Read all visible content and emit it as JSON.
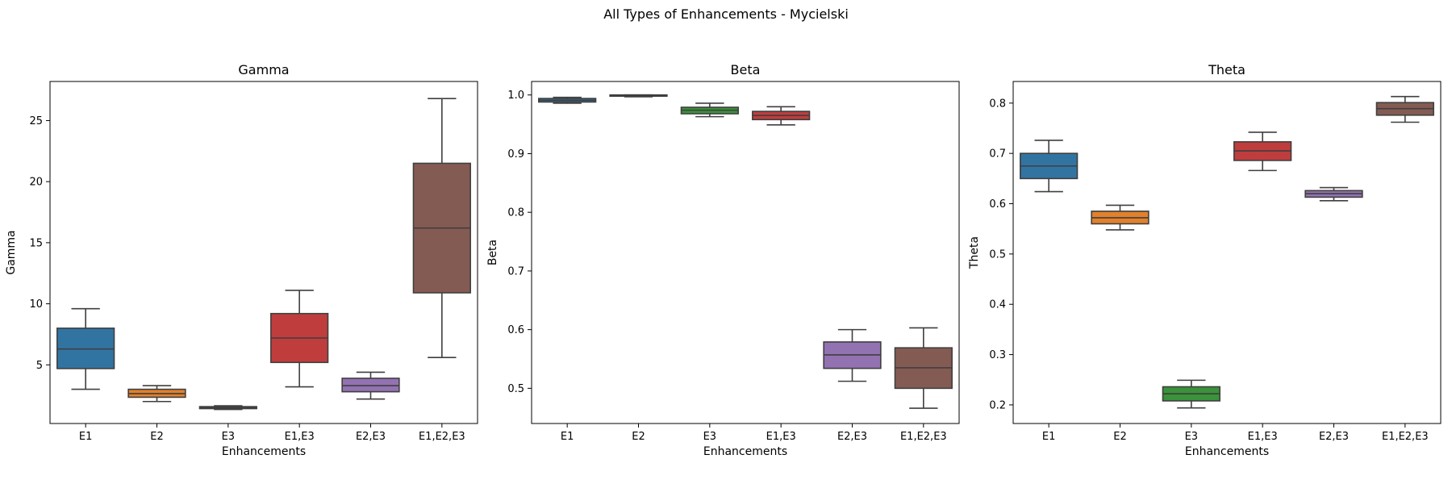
{
  "figure": {
    "title": "All Types of Enhancements - Mycielski"
  },
  "chart_data": [
    {
      "type": "box",
      "title": "Gamma",
      "xlabel": "Enhancements",
      "ylabel": "Gamma",
      "categories": [
        "E1",
        "E2",
        "E3",
        "E1,E3",
        "E2,E3",
        "E1,E2,E3"
      ],
      "ylim": [
        0.2,
        28.2
      ],
      "yticks": [
        5,
        10,
        15,
        20,
        25
      ],
      "boxes": [
        {
          "whislo": 3.0,
          "q1": 4.7,
          "med": 6.3,
          "q3": 8.0,
          "whishi": 9.6
        },
        {
          "whislo": 2.0,
          "q1": 2.35,
          "med": 2.65,
          "q3": 3.0,
          "whishi": 3.3
        },
        {
          "whislo": 1.35,
          "q1": 1.42,
          "med": 1.5,
          "q3": 1.58,
          "whishi": 1.65
        },
        {
          "whislo": 3.2,
          "q1": 5.2,
          "med": 7.2,
          "q3": 9.2,
          "whishi": 11.1
        },
        {
          "whislo": 2.2,
          "q1": 2.8,
          "med": 3.3,
          "q3": 3.9,
          "whishi": 4.4
        },
        {
          "whislo": 5.6,
          "q1": 10.9,
          "med": 16.2,
          "q3": 21.5,
          "whishi": 26.8
        }
      ]
    },
    {
      "type": "box",
      "title": "Beta",
      "xlabel": "Enhancements",
      "ylabel": "Beta",
      "categories": [
        "E1",
        "E2",
        "E3",
        "E1,E3",
        "E2,E3",
        "E1,E2,E3"
      ],
      "ylim": [
        0.44,
        1.023
      ],
      "yticks": [
        0.5,
        0.6,
        0.7,
        0.8,
        0.9,
        1.0
      ],
      "ytick_labels": [
        "0.5",
        "0.6",
        "0.7",
        "0.8",
        "0.9",
        "1.0"
      ],
      "boxes": [
        {
          "whislo": 0.986,
          "q1": 0.988,
          "med": 0.991,
          "q3": 0.994,
          "whishi": 0.996
        },
        {
          "whislo": 0.997,
          "q1": 0.998,
          "med": 0.9995,
          "q3": 1.0,
          "whishi": 1.0
        },
        {
          "whislo": 0.963,
          "q1": 0.968,
          "med": 0.974,
          "q3": 0.979,
          "whishi": 0.986
        },
        {
          "whislo": 0.949,
          "q1": 0.958,
          "med": 0.965,
          "q3": 0.972,
          "whishi": 0.98
        },
        {
          "whislo": 0.512,
          "q1": 0.534,
          "med": 0.557,
          "q3": 0.579,
          "whishi": 0.6
        },
        {
          "whislo": 0.466,
          "q1": 0.5,
          "med": 0.535,
          "q3": 0.569,
          "whishi": 0.603
        }
      ]
    },
    {
      "type": "box",
      "title": "Theta",
      "xlabel": "Enhancements",
      "ylabel": "Theta",
      "categories": [
        "E1",
        "E2",
        "E3",
        "E1,E3",
        "E2,E3",
        "E1,E2,E3"
      ],
      "ylim": [
        0.163,
        0.843
      ],
      "yticks": [
        0.2,
        0.3,
        0.4,
        0.5,
        0.6,
        0.7,
        0.8
      ],
      "ytick_labels": [
        "0.2",
        "0.3",
        "0.4",
        "0.5",
        "0.6",
        "0.7",
        "0.8"
      ],
      "boxes": [
        {
          "whislo": 0.624,
          "q1": 0.65,
          "med": 0.675,
          "q3": 0.7,
          "whishi": 0.726
        },
        {
          "whislo": 0.548,
          "q1": 0.56,
          "med": 0.572,
          "q3": 0.585,
          "whishi": 0.597
        },
        {
          "whislo": 0.194,
          "q1": 0.208,
          "med": 0.222,
          "q3": 0.236,
          "whishi": 0.249
        },
        {
          "whislo": 0.666,
          "q1": 0.686,
          "med": 0.705,
          "q3": 0.723,
          "whishi": 0.742
        },
        {
          "whislo": 0.606,
          "q1": 0.613,
          "med": 0.62,
          "q3": 0.626,
          "whishi": 0.632
        },
        {
          "whislo": 0.762,
          "q1": 0.776,
          "med": 0.789,
          "q3": 0.801,
          "whishi": 0.813
        }
      ]
    }
  ],
  "colors": {
    "palette": [
      "#3274a1",
      "#e1812c",
      "#3a923a",
      "#c03d3e",
      "#9372b2",
      "#845b53"
    ],
    "line": "#3f3f3f",
    "axes": "#000000"
  }
}
